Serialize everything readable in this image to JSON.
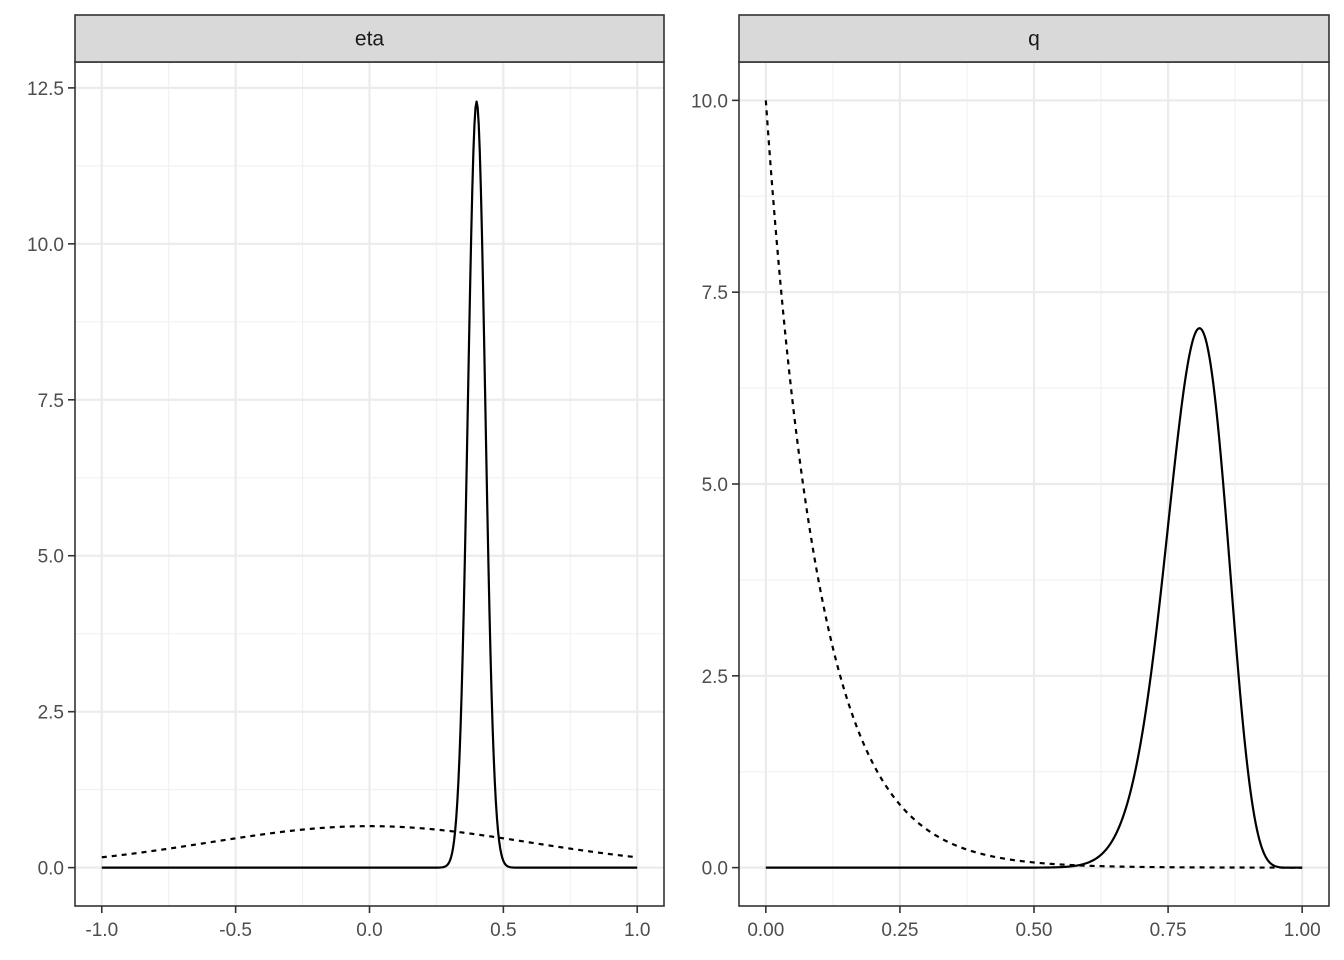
{
  "chart_data": [
    {
      "type": "line",
      "panel": "eta",
      "xlim": [
        -1.1,
        1.1
      ],
      "ylim": [
        -0.615,
        12.915
      ],
      "x_ticks": [
        -1.0,
        -0.5,
        0.0,
        0.5,
        1.0
      ],
      "x_tick_labels": [
        "-1.0",
        "-0.5",
        "0.0",
        "0.5",
        "1.0"
      ],
      "y_ticks": [
        0.0,
        2.5,
        5.0,
        7.5,
        10.0,
        12.5
      ],
      "y_tick_labels": [
        "0.0",
        "2.5",
        "5.0",
        "7.5",
        "10.0",
        "12.5"
      ],
      "grid": true,
      "series": [
        {
          "style": "solid",
          "shape": "normal",
          "x_range": [
            -1.0,
            1.0
          ],
          "mean": 0.4,
          "sd": 0.0325,
          "peak": 12.28
        },
        {
          "style": "dashed",
          "shape": "normal",
          "x_range": [
            -1.0,
            1.0
          ],
          "mean": 0.0,
          "sd": 0.6,
          "peak": 0.665
        }
      ]
    },
    {
      "type": "line",
      "panel": "q",
      "xlim": [
        -0.05,
        1.05
      ],
      "ylim": [
        -0.5,
        10.5
      ],
      "x_ticks": [
        0.0,
        0.25,
        0.5,
        0.75,
        1.0
      ],
      "x_tick_labels": [
        "0.00",
        "0.25",
        "0.50",
        "0.75",
        "1.00"
      ],
      "y_ticks": [
        0.0,
        2.5,
        5.0,
        7.5,
        10.0
      ],
      "y_tick_labels": [
        "0.0",
        "2.5",
        "5.0",
        "7.5",
        "10.0"
      ],
      "grid": true,
      "series": [
        {
          "style": "solid",
          "shape": "beta",
          "x_range": [
            0.0,
            1.0
          ],
          "alpha": 39,
          "beta": 10,
          "peak": 7.22
        },
        {
          "style": "dashed",
          "shape": "exponential",
          "x_range": [
            0.0,
            1.0
          ],
          "start": 10.0,
          "rate": 10.0
        }
      ]
    }
  ]
}
